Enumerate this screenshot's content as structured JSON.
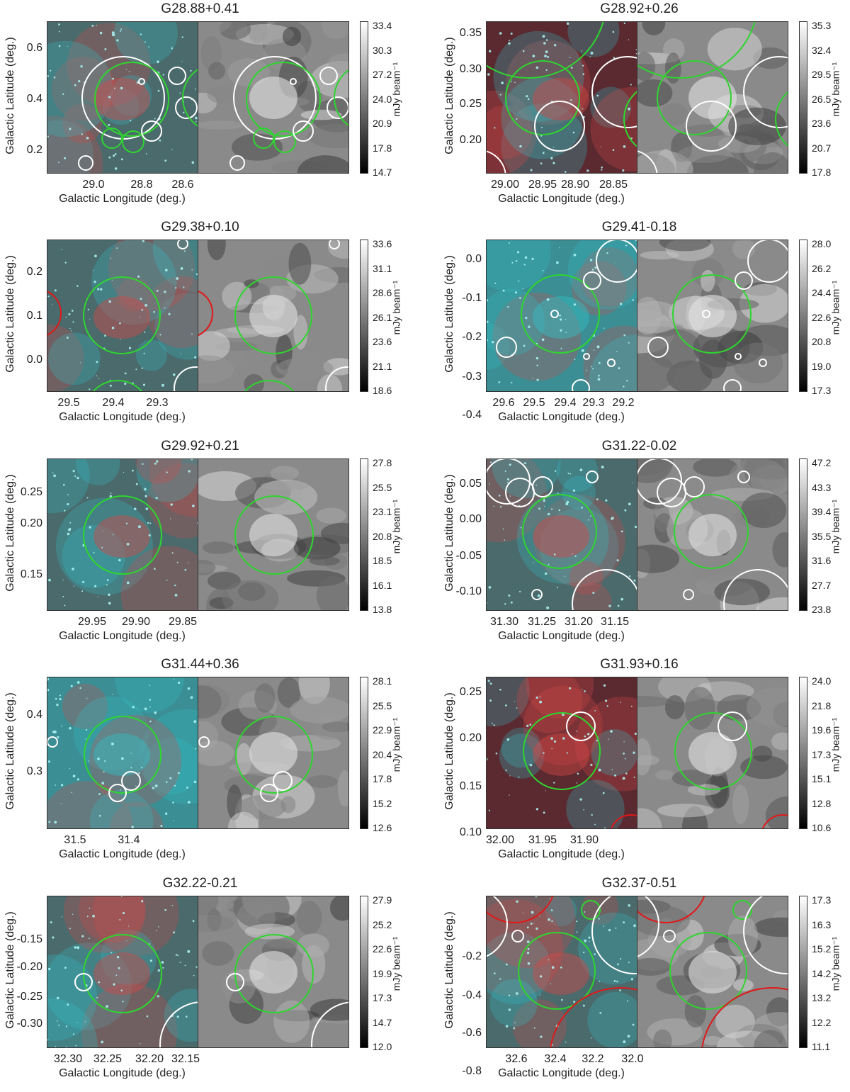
{
  "figure": {
    "xlabel": "Galactic Longitude (deg.)",
    "ylabel": "Galactic Latitude (deg.)",
    "unit": "mJy beam⁻¹",
    "colors": {
      "circle_green": "#2fd52f",
      "circle_white": "#ffffff",
      "circle_red": "#e01818",
      "ir_cyan": "#33bfc6",
      "ir_red": "#d34848"
    },
    "panels": [
      {
        "title": "G28.88+0.41",
        "xticks": [
          "29.0",
          "28.8",
          "28.6"
        ],
        "yticks": [
          "0.6",
          "0.4",
          "0.2"
        ],
        "cbar": [
          "33.4",
          "30.3",
          "27.2",
          "24.0",
          "20.9",
          "17.8",
          "14.7"
        ],
        "style": "mixed"
      },
      {
        "title": "G28.92+0.26",
        "xticks": [
          "29.00",
          "28.95",
          "28.90",
          "28.85"
        ],
        "yticks": [
          "0.35",
          "0.30",
          "0.25",
          "0.20"
        ],
        "cbar": [
          "35.3",
          "32.4",
          "29.5",
          "26.5",
          "23.6",
          "20.7",
          "17.8"
        ],
        "style": "red"
      },
      {
        "title": "G29.38+0.10",
        "xticks": [
          "29.5",
          "29.4",
          "29.3"
        ],
        "yticks": [
          "0.2",
          "0.1",
          "0.0"
        ],
        "cbar": [
          "33.6",
          "31.1",
          "28.6",
          "26.1",
          "23.6",
          "21.1",
          "18.6"
        ],
        "style": "mixed"
      },
      {
        "title": "G29.41-0.18",
        "xticks": [
          "29.6",
          "29.5",
          "29.4",
          "29.3",
          "29.2"
        ],
        "yticks": [
          "0.0",
          "-0.1",
          "-0.2",
          "-0.3",
          "-0.4"
        ],
        "cbar": [
          "28.0",
          "26.2",
          "24.4",
          "22.6",
          "20.8",
          "19.0",
          "17.3"
        ],
        "style": "cyan"
      },
      {
        "title": "G29.92+0.21",
        "xticks": [
          "29.95",
          "29.90",
          "29.85"
        ],
        "yticks": [
          "0.25",
          "0.20",
          "0.15"
        ],
        "cbar": [
          "27.8",
          "25.5",
          "23.1",
          "20.8",
          "18.5",
          "16.1",
          "13.8"
        ],
        "style": "mixed"
      },
      {
        "title": "G31.22-0.02",
        "xticks": [
          "31.30",
          "31.25",
          "31.20",
          "31.15"
        ],
        "yticks": [
          "0.05",
          "0.00",
          "-0.05",
          "-0.10"
        ],
        "cbar": [
          "47.2",
          "43.3",
          "39.4",
          "35.5",
          "31.6",
          "27.7",
          "23.8"
        ],
        "style": "mixed"
      },
      {
        "title": "G31.44+0.36",
        "xticks": [
          "31.5",
          "31.4"
        ],
        "yticks": [
          "0.4",
          "0.3"
        ],
        "cbar": [
          "28.1",
          "25.5",
          "22.9",
          "20.4",
          "17.8",
          "15.2",
          "12.6"
        ],
        "style": "cyan"
      },
      {
        "title": "G31.93+0.16",
        "xticks": [
          "32.00",
          "31.95",
          "31.90"
        ],
        "yticks": [
          "0.25",
          "0.20",
          "0.15",
          "0.10"
        ],
        "cbar": [
          "24.0",
          "21.8",
          "19.6",
          "17.3",
          "15.1",
          "12.8",
          "10.6"
        ],
        "style": "red"
      },
      {
        "title": "G32.22-0.21",
        "xticks": [
          "32.30",
          "32.25",
          "32.20",
          "32.15"
        ],
        "yticks": [
          "-0.15",
          "-0.20",
          "-0.25",
          "-0.30"
        ],
        "cbar": [
          "27.9",
          "25.2",
          "22.6",
          "19.9",
          "17.3",
          "14.7",
          "12.0"
        ],
        "style": "mixed"
      },
      {
        "title": "G32.37-0.51",
        "xticks": [
          "32.6",
          "32.4",
          "32.2",
          "32.0"
        ],
        "yticks": [
          "-0.2",
          "-0.4",
          "-0.6",
          "-0.8"
        ],
        "cbar": [
          "17.3",
          "16.3",
          "15.2",
          "14.2",
          "13.2",
          "12.2",
          "11.1"
        ],
        "style": "mixed"
      }
    ]
  }
}
